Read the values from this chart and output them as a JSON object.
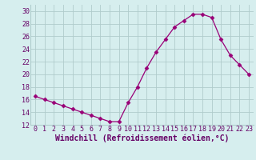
{
  "x": [
    0,
    1,
    2,
    3,
    4,
    5,
    6,
    7,
    8,
    9,
    10,
    11,
    12,
    13,
    14,
    15,
    16,
    17,
    18,
    19,
    20,
    21,
    22,
    23
  ],
  "y": [
    16.5,
    16.0,
    15.5,
    15.0,
    14.5,
    14.0,
    13.5,
    13.0,
    12.5,
    12.5,
    15.5,
    18.0,
    21.0,
    23.5,
    25.5,
    27.5,
    28.5,
    29.5,
    29.5,
    29.0,
    25.5,
    23.0,
    21.5,
    20.0
  ],
  "line_color": "#990077",
  "marker": "D",
  "marker_size": 2.5,
  "bg_color": "#d6eeee",
  "grid_color": "#b0cccc",
  "xlabel": "Windchill (Refroidissement éolien,°C)",
  "xlabel_fontsize": 7,
  "tick_fontsize": 6,
  "ylim": [
    12,
    31
  ],
  "yticks": [
    12,
    14,
    16,
    18,
    20,
    22,
    24,
    26,
    28,
    30
  ],
  "xticks": [
    0,
    1,
    2,
    3,
    4,
    5,
    6,
    7,
    8,
    9,
    10,
    11,
    12,
    13,
    14,
    15,
    16,
    17,
    18,
    19,
    20,
    21,
    22,
    23
  ]
}
